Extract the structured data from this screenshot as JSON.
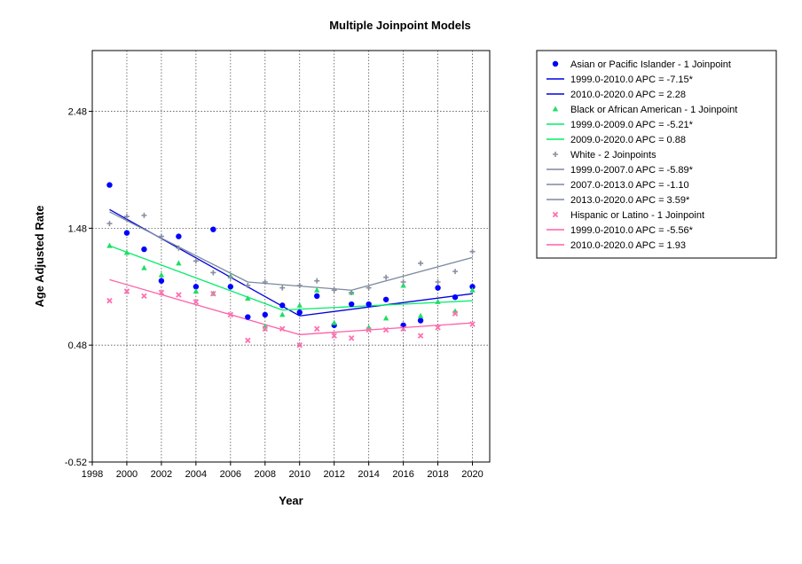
{
  "chart_data": {
    "type": "line",
    "title": "Multiple Joinpoint Models",
    "xlabel": "Year",
    "ylabel": "Age Adjusted Rate",
    "xlim": [
      1998,
      2021
    ],
    "ylim": [
      -0.52,
      3.0
    ],
    "x_ticks": [
      "1998",
      "2000",
      "2002",
      "2004",
      "2006",
      "2008",
      "2010",
      "2012",
      "2014",
      "2016",
      "2018",
      "2020"
    ],
    "y_ticks": [
      "-0.52",
      "0.48",
      "1.48",
      "2.48"
    ],
    "grid": true,
    "legend_position": "right",
    "series": [
      {
        "name": "Asian or Pacific Islander - 1 Joinpoint",
        "kind": "observed",
        "color": "#0000ff",
        "marker": "circle",
        "x": [
          1999,
          2000,
          2001,
          2002,
          2003,
          2004,
          2005,
          2006,
          2007,
          2008,
          2009,
          2010,
          2011,
          2012,
          2013,
          2014,
          2015,
          2016,
          2017,
          2018,
          2019,
          2020
        ],
        "y": [
          1.85,
          1.44,
          1.3,
          1.03,
          1.41,
          0.98,
          1.47,
          0.98,
          0.72,
          0.74,
          0.82,
          0.76,
          0.9,
          0.65,
          0.83,
          0.83,
          0.87,
          0.65,
          0.69,
          0.97,
          0.89,
          0.98
        ]
      },
      {
        "name": "1999.0-2010.0 APC  = -7.15*",
        "kind": "fit",
        "color": "#0000e0",
        "x": [
          1999,
          2010
        ],
        "y": [
          1.64,
          0.73
        ]
      },
      {
        "name": "2010.0-2020.0 APC  =  2.28",
        "kind": "fit",
        "color": "#0000e0",
        "x": [
          2010,
          2020
        ],
        "y": [
          0.73,
          0.92
        ]
      },
      {
        "name": "Black or African American - 1 Joinpoint",
        "kind": "observed",
        "color": "#22dd66",
        "marker": "triangle",
        "x": [
          1999,
          2000,
          2001,
          2002,
          2003,
          2004,
          2005,
          2006,
          2007,
          2008,
          2009,
          2010,
          2011,
          2012,
          2013,
          2014,
          2015,
          2016,
          2017,
          2018,
          2019,
          2020
        ],
        "y": [
          1.33,
          1.27,
          1.14,
          1.08,
          1.18,
          0.94,
          0.92,
          1.07,
          0.88,
          0.64,
          0.74,
          0.82,
          0.95,
          0.67,
          0.93,
          0.63,
          0.71,
          0.99,
          0.73,
          0.85,
          0.77,
          0.95
        ]
      },
      {
        "name": "1999.0-2009.0 APC  = -5.21*",
        "kind": "fit",
        "color": "#00ee66",
        "x": [
          1999,
          2009
        ],
        "y": [
          1.33,
          0.78
        ]
      },
      {
        "name": "2009.0-2020.0 APC  =  0.88",
        "kind": "fit",
        "color": "#00ee66",
        "x": [
          2009,
          2020
        ],
        "y": [
          0.78,
          0.86
        ]
      },
      {
        "name": "White - 2 Joinpoints",
        "kind": "observed",
        "color": "#8a8fa0",
        "marker": "cross",
        "x": [
          1999,
          2000,
          2001,
          2002,
          2003,
          2004,
          2005,
          2006,
          2007,
          2008,
          2009,
          2010,
          2011,
          2012,
          2013,
          2014,
          2015,
          2016,
          2017,
          2018,
          2019,
          2020
        ],
        "y": [
          1.52,
          1.58,
          1.59,
          1.41,
          1.31,
          1.2,
          1.1,
          1.06,
          0.99,
          1.02,
          0.97,
          0.99,
          1.03,
          0.95,
          0.93,
          0.97,
          1.06,
          1.02,
          1.18,
          1.02,
          1.11,
          1.28
        ]
      },
      {
        "name": "1999.0-2007.0 APC  = -5.89*",
        "kind": "fit",
        "color": "#7a8aa0",
        "x": [
          1999,
          2007
        ],
        "y": [
          1.62,
          1.02
        ]
      },
      {
        "name": "2007.0-2013.0 APC  = -1.10",
        "kind": "fit",
        "color": "#7a8aa0",
        "x": [
          2007,
          2013
        ],
        "y": [
          1.02,
          0.95
        ]
      },
      {
        "name": "2013.0-2020.0 APC  =  3.59*",
        "kind": "fit",
        "color": "#7a8aa0",
        "x": [
          2013,
          2020
        ],
        "y": [
          0.95,
          1.23
        ]
      },
      {
        "name": "Hispanic or Latino - 1 Joinpoint",
        "kind": "observed",
        "color": "#ff6fb0",
        "marker": "x",
        "x": [
          1999,
          2000,
          2001,
          2002,
          2003,
          2004,
          2005,
          2006,
          2007,
          2008,
          2009,
          2010,
          2011,
          2012,
          2013,
          2014,
          2015,
          2016,
          2017,
          2018,
          2019,
          2020
        ],
        "y": [
          0.86,
          0.94,
          0.9,
          0.93,
          0.91,
          0.85,
          0.92,
          0.74,
          0.52,
          0.62,
          0.62,
          0.48,
          0.62,
          0.56,
          0.54,
          0.61,
          0.61,
          0.62,
          0.56,
          0.63,
          0.75,
          0.66
        ]
      },
      {
        "name": "1999.0-2010.0 APC  = -5.56*",
        "kind": "fit",
        "color": "#ff5fa8",
        "x": [
          1999,
          2010
        ],
        "y": [
          1.04,
          0.57
        ]
      },
      {
        "name": "2010.0-2020.0 APC  =  1.93",
        "kind": "fit",
        "color": "#ff5fa8",
        "x": [
          2010,
          2020
        ],
        "y": [
          0.57,
          0.67
        ]
      }
    ]
  }
}
